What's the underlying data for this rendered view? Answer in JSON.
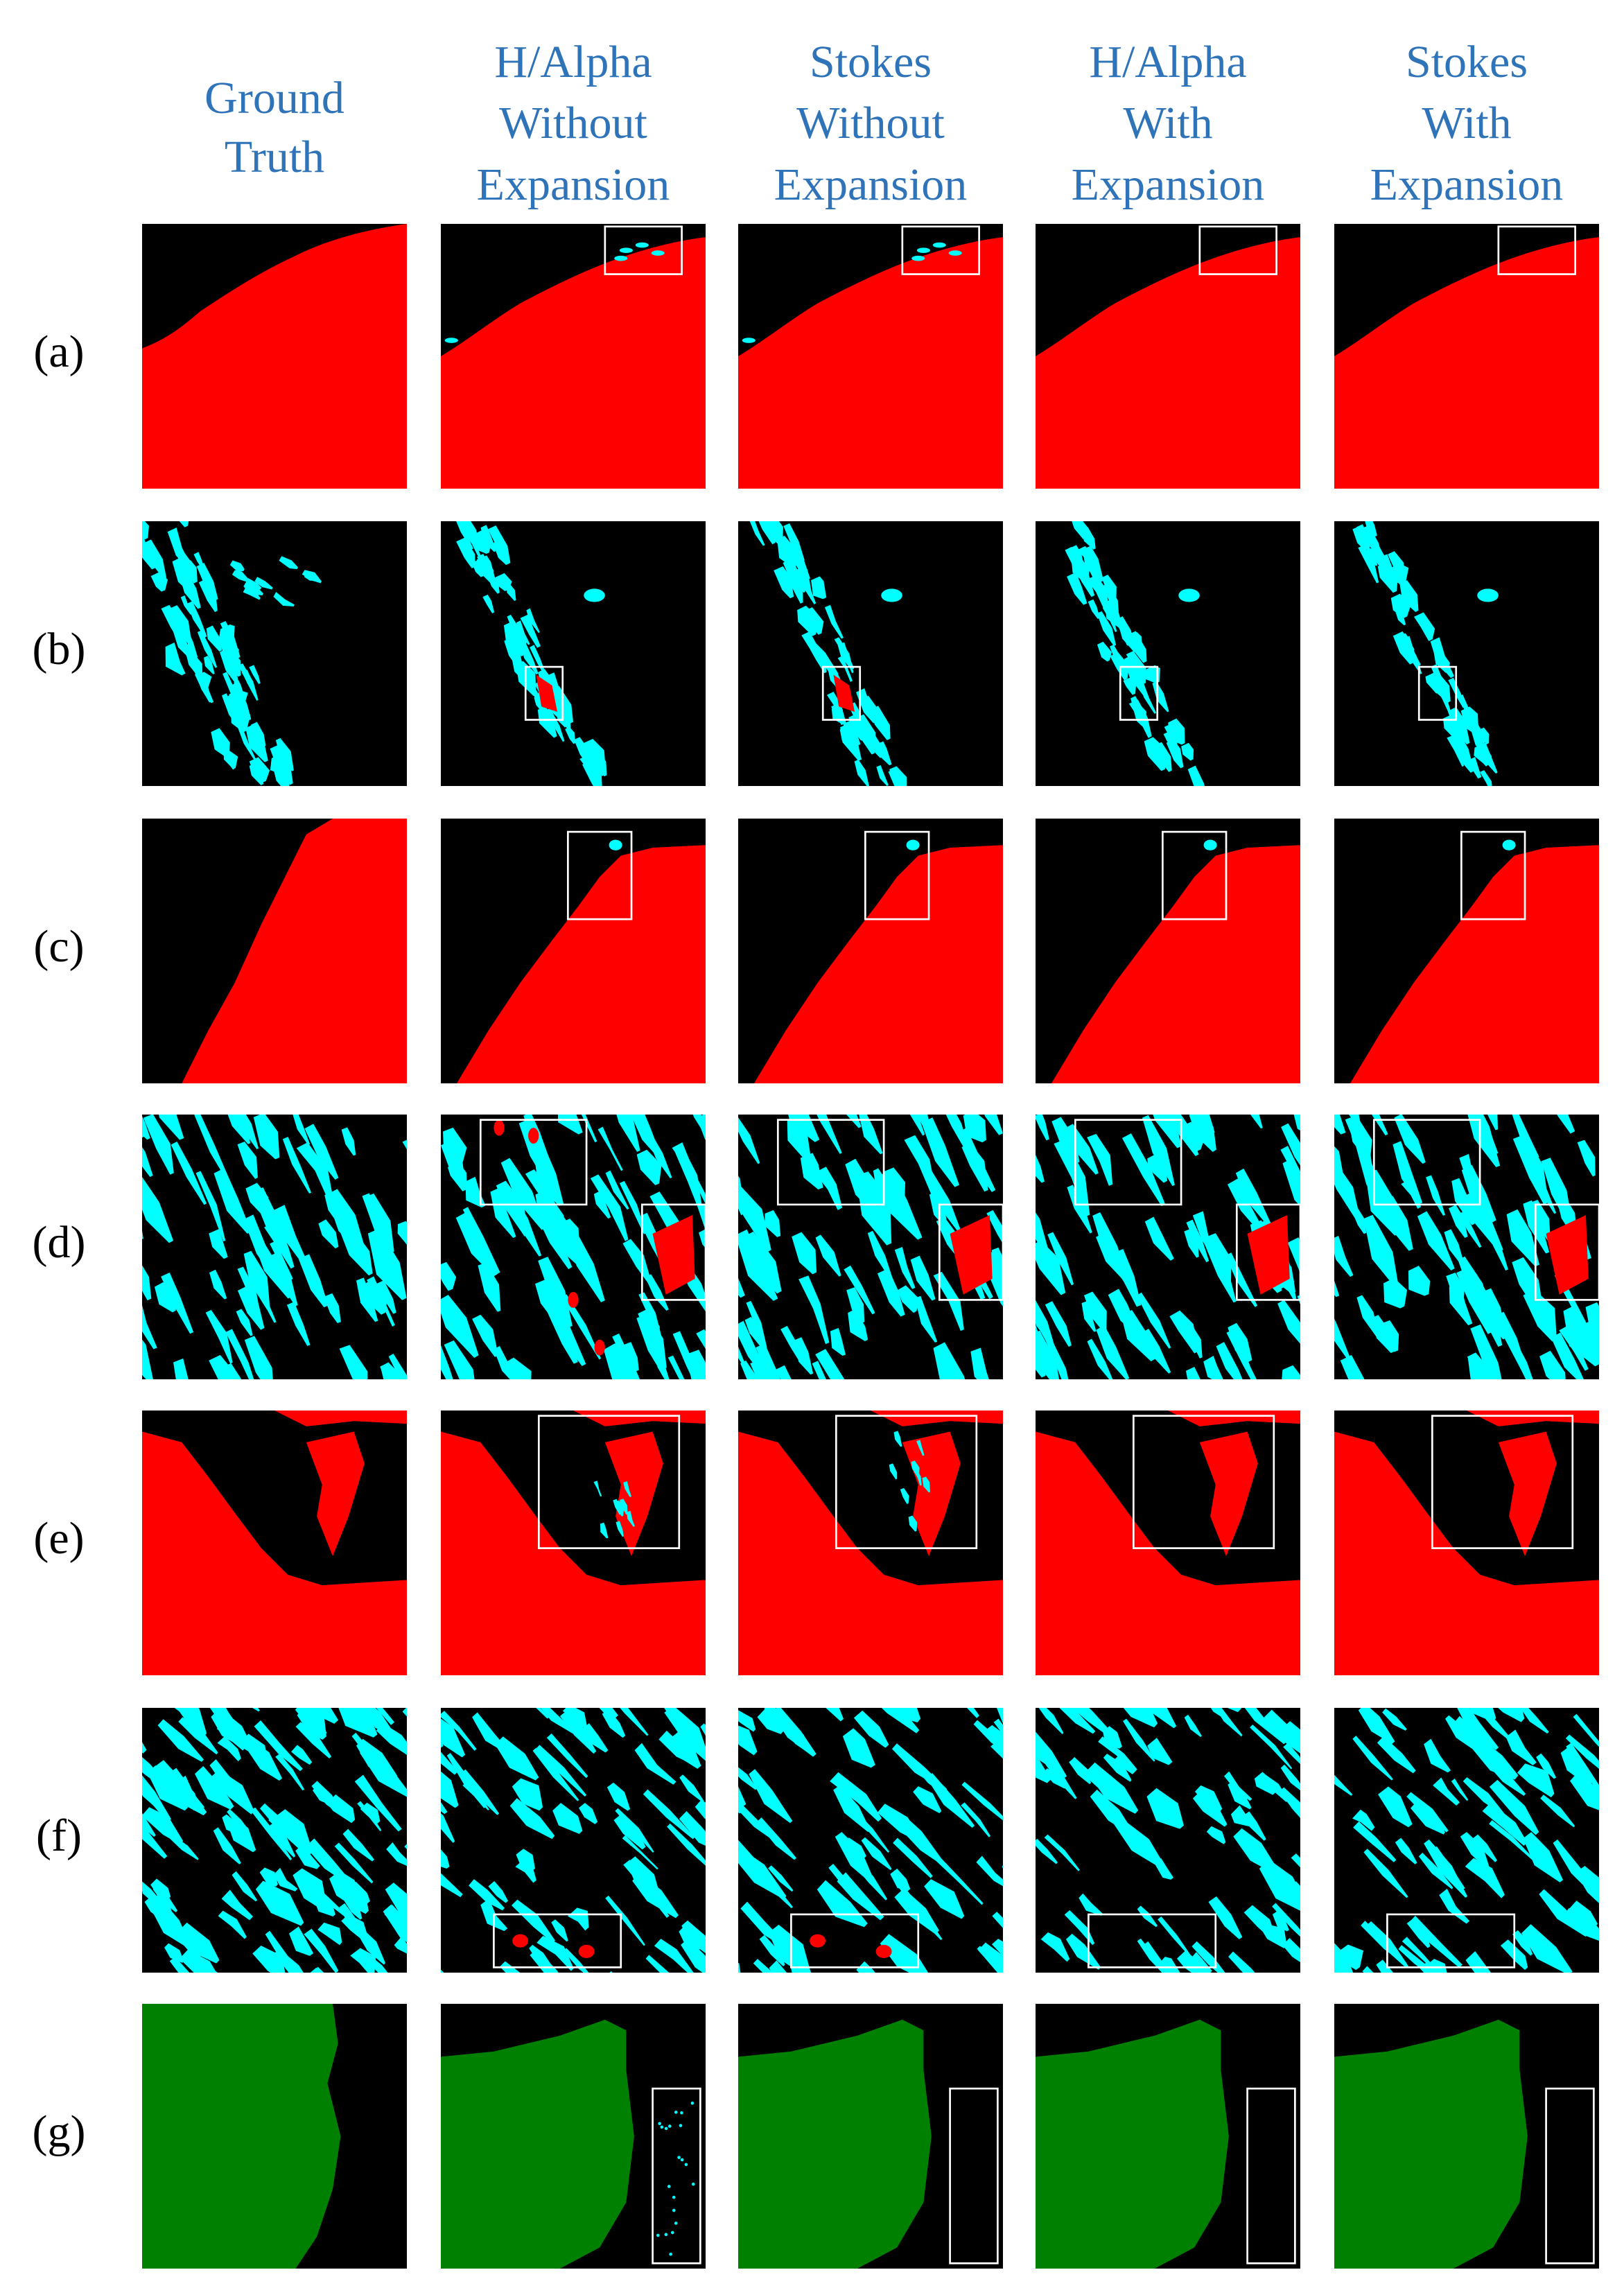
{
  "header": {
    "columns": [
      {
        "lines": [
          "Ground",
          "Truth"
        ]
      },
      {
        "lines": [
          "H/Alpha",
          "Without",
          "Expansion"
        ]
      },
      {
        "lines": [
          "Stokes",
          "Without",
          "Expansion"
        ]
      },
      {
        "lines": [
          "H/Alpha",
          "With",
          "Expansion"
        ]
      },
      {
        "lines": [
          "Stokes",
          "With",
          "Expansion"
        ]
      }
    ]
  },
  "rows": {
    "labels": [
      "(a)",
      "(b)",
      "(c)",
      "(d)",
      "(e)",
      "(f)",
      "(g)"
    ]
  }
}
